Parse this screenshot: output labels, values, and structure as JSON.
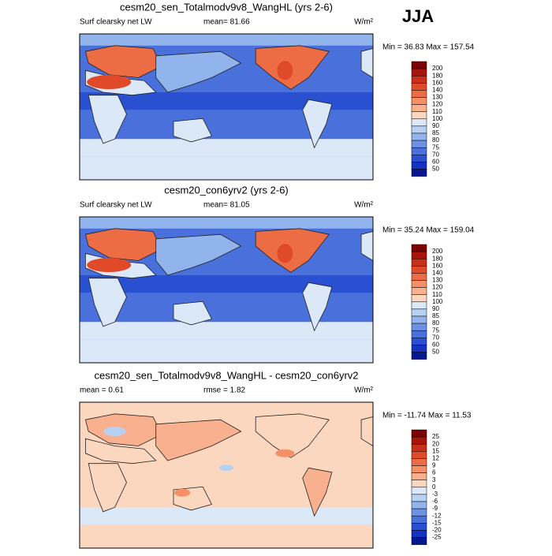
{
  "season": "JJA",
  "panels": [
    {
      "title": "cesm20_sen_Totalmodv9v8_WangHL (yrs 2-6)",
      "left": "Surf clearsky net LW",
      "center": "mean=  81.66",
      "units": "W/m²",
      "minmax": "Min =  36.83 Max = 157.54",
      "colorbar": {
        "levels": [
          200,
          180,
          160,
          140,
          130,
          120,
          110,
          100,
          90,
          85,
          80,
          75,
          70,
          60,
          50
        ],
        "colors": [
          "#7a0403",
          "#a8150d",
          "#c9301a",
          "#e04a28",
          "#ec6c44",
          "#f48f66",
          "#f8b08e",
          "#fcd7bf",
          "#dbe8f8",
          "#b7d1f2",
          "#92b4ec",
          "#6d92e4",
          "#4a70dc",
          "#2a50d2",
          "#1433c2",
          "#07178f"
        ]
      }
    },
    {
      "title": "cesm20_con6yrv2 (yrs 2-6)",
      "left": "Surf clearsky net LW",
      "center": "mean=  81.05",
      "units": "W/m²",
      "minmax": "Min =  35.24 Max = 159.04",
      "colorbar": {
        "levels": [
          200,
          180,
          160,
          140,
          130,
          120,
          110,
          100,
          90,
          85,
          80,
          75,
          70,
          60,
          50
        ],
        "colors": [
          "#7a0403",
          "#a8150d",
          "#c9301a",
          "#e04a28",
          "#ec6c44",
          "#f48f66",
          "#f8b08e",
          "#fcd7bf",
          "#dbe8f8",
          "#b7d1f2",
          "#92b4ec",
          "#6d92e4",
          "#4a70dc",
          "#2a50d2",
          "#1433c2",
          "#07178f"
        ]
      }
    },
    {
      "title": "cesm20_sen_Totalmodv9v8_WangHL - cesm20_con6yrv2",
      "left": "mean =  0.61",
      "center": "rmse =  1.82",
      "units": "W/m²",
      "minmax": "Min = -11.74 Max = 11.53",
      "colorbar": {
        "levels": [
          25,
          20,
          15,
          12,
          9,
          6,
          3,
          0,
          -3,
          -6,
          -9,
          -12,
          -15,
          -20,
          -25
        ],
        "colors": [
          "#7a0403",
          "#a8150d",
          "#c9301a",
          "#e04a28",
          "#ec6c44",
          "#f48f66",
          "#f8b08e",
          "#fcd7bf",
          "#dbe8f8",
          "#b7d1f2",
          "#92b4ec",
          "#6d92e4",
          "#4a70dc",
          "#2a50d2",
          "#1433c2",
          "#07178f"
        ]
      }
    }
  ]
}
